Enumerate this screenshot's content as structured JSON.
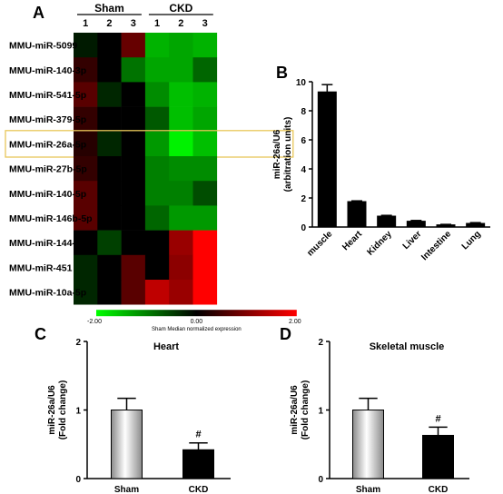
{
  "panel_labels": {
    "a": "A",
    "b": "B",
    "c": "C",
    "d": "D"
  },
  "colors": {
    "bar_black": "#000000",
    "highlight_box": "#e8c75a",
    "heat_low": "#00ff00",
    "heat_mid": "#000000",
    "heat_high": "#ff0000"
  },
  "chart_data": [
    {
      "panel": "A",
      "type": "heatmap",
      "group_labels": [
        "Sham",
        "CKD"
      ],
      "column_labels": [
        "1",
        "2",
        "3",
        "1",
        "2",
        "3"
      ],
      "rows": [
        "MMU-miR-5099",
        "MMU-miR-140-3p",
        "MMU-miR-541-5p",
        "MMU-miR-379-5p",
        "MMU-miR-26a-5p",
        "MMU-miR-27b-5p",
        "MMU-miR-140-5p",
        "MMU-miR-146b-5p",
        "MMU-miR-144-3p",
        "MMU-miR-451",
        "MMU-miR-10a-5p"
      ],
      "highlighted_row": "MMU-miR-26a-5p",
      "values": [
        [
          -0.2,
          0.0,
          0.8,
          -1.4,
          -1.3,
          -1.4
        ],
        [
          0.4,
          0.0,
          -0.9,
          -1.3,
          -1.3,
          -0.8
        ],
        [
          0.7,
          -0.3,
          0.0,
          -1.1,
          -1.5,
          -1.4
        ],
        [
          0.4,
          0.0,
          0.0,
          -0.7,
          -1.5,
          -1.3
        ],
        [
          0.3,
          -0.3,
          0.0,
          -1.2,
          -1.9,
          -1.5
        ],
        [
          0.4,
          0.0,
          0.0,
          -1.0,
          -1.1,
          -1.1
        ],
        [
          0.7,
          0.0,
          0.0,
          -1.0,
          -1.0,
          -0.6
        ],
        [
          0.7,
          0.0,
          0.0,
          -0.8,
          -1.2,
          -1.2
        ],
        [
          0.0,
          -0.5,
          0.0,
          0.0,
          1.2,
          2.0
        ],
        [
          -0.3,
          0.0,
          0.7,
          0.0,
          1.1,
          2.0
        ],
        [
          -0.3,
          0.0,
          0.7,
          1.5,
          1.2,
          2.0
        ]
      ],
      "scale": {
        "min": -2.0,
        "mid": 0.0,
        "max": 2.0,
        "tick_labels": [
          "-2.00",
          "0.00",
          "2.00"
        ],
        "caption": "Sham Median normalized expression"
      }
    },
    {
      "panel": "B",
      "type": "bar",
      "categories": [
        "muscle",
        "Heart",
        "Kidney",
        "Liver",
        "Intestine",
        "Lung"
      ],
      "values": [
        9.3,
        1.75,
        0.75,
        0.4,
        0.15,
        0.25
      ],
      "errors": [
        0.5,
        0.05,
        0.05,
        0.05,
        0.03,
        0.05
      ],
      "ylabel_lines": [
        "miR-26a/U6",
        "(arbitration units)"
      ],
      "ylim": [
        0,
        10
      ],
      "yticks": [
        "0",
        "2",
        "4",
        "6",
        "8",
        "10"
      ]
    },
    {
      "panel": "C",
      "type": "bar",
      "title": "Heart",
      "categories": [
        "Sham",
        "CKD"
      ],
      "values": [
        1.0,
        0.42
      ],
      "errors": [
        0.17,
        0.1
      ],
      "annotations": [
        "",
        "#"
      ],
      "ylabel_lines": [
        "miR-26a/U6",
        "(Fold change)"
      ],
      "ylim": [
        0,
        2
      ],
      "yticks": [
        "0",
        "1",
        "2"
      ]
    },
    {
      "panel": "D",
      "type": "bar",
      "title": "Skeletal muscle",
      "categories": [
        "Sham",
        "CKD"
      ],
      "values": [
        1.0,
        0.63
      ],
      "errors": [
        0.17,
        0.12
      ],
      "annotations": [
        "",
        "#"
      ],
      "ylabel_lines": [
        "miR-26a/U6",
        "(Fold change)"
      ],
      "ylim": [
        0,
        2
      ],
      "yticks": [
        "0",
        "1",
        "2"
      ]
    }
  ]
}
